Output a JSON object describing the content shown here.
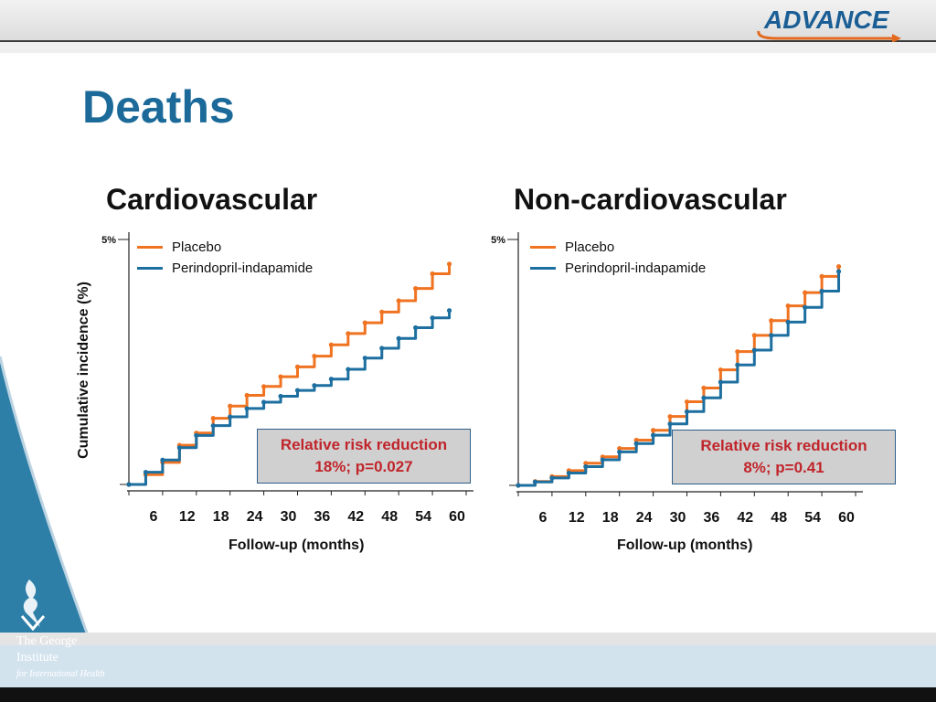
{
  "header": {
    "logo_text": "ADVANCE"
  },
  "page": {
    "title": "Deaths"
  },
  "footer": {
    "institute_line1": "The George",
    "institute_line2": "Institute",
    "institute_line3": "for International Health"
  },
  "colors": {
    "placebo": "#f07321",
    "active": "#1d6fa0",
    "title": "#1c6a99",
    "rrr_text": "#c0252b",
    "sidebar": "#2e7fa8"
  },
  "chart_data": [
    {
      "type": "line",
      "title": "Cardiovascular",
      "xlabel": "Follow-up (months)",
      "ylabel": "Cumulative incidence (%)",
      "x_ticks": [
        6,
        12,
        18,
        24,
        30,
        36,
        42,
        48,
        54,
        60
      ],
      "x_tick_labels": [
        "6",
        "12",
        "18",
        "24",
        "30",
        "36",
        "42",
        "48",
        "54",
        "60"
      ],
      "xlim": [
        0,
        60
      ],
      "ylim": [
        0,
        5
      ],
      "y_tick_labels": [
        "5%"
      ],
      "legend": [
        "Placebo",
        "Perindopril-indapamide"
      ],
      "annotation": {
        "line1": "Relative risk reduction",
        "line2": "18%;  p=0.027"
      },
      "series": [
        {
          "name": "Placebo",
          "x": [
            0,
            3,
            6,
            9,
            12,
            15,
            18,
            21,
            24,
            27,
            30,
            33,
            36,
            39,
            42,
            45,
            48,
            51,
            54,
            57
          ],
          "y": [
            0,
            0.2,
            0.45,
            0.8,
            1.05,
            1.35,
            1.6,
            1.82,
            2.0,
            2.2,
            2.4,
            2.62,
            2.85,
            3.08,
            3.3,
            3.52,
            3.75,
            4.0,
            4.3,
            4.5
          ]
        },
        {
          "name": "Perindopril-indapamide",
          "x": [
            0,
            3,
            6,
            9,
            12,
            15,
            18,
            21,
            24,
            27,
            30,
            33,
            36,
            39,
            42,
            45,
            48,
            51,
            54,
            57
          ],
          "y": [
            0,
            0.25,
            0.5,
            0.75,
            1.0,
            1.2,
            1.38,
            1.55,
            1.68,
            1.8,
            1.92,
            2.02,
            2.15,
            2.35,
            2.58,
            2.78,
            2.98,
            3.2,
            3.4,
            3.55
          ]
        }
      ]
    },
    {
      "type": "line",
      "title": "Non-cardiovascular",
      "xlabel": "Follow-up (months)",
      "ylabel": "",
      "x_ticks": [
        6,
        12,
        18,
        24,
        30,
        36,
        42,
        48,
        54,
        60
      ],
      "x_tick_labels": [
        "6",
        "12",
        "18",
        "24",
        "30",
        "36",
        "42",
        "48",
        "54",
        "60"
      ],
      "xlim": [
        0,
        60
      ],
      "ylim": [
        0,
        5
      ],
      "y_tick_labels": [
        "5%"
      ],
      "legend": [
        "Placebo",
        "Perindopril-indapamide"
      ],
      "annotation": {
        "line1": "Relative risk reduction",
        "line2": "8%; p=0.41"
      },
      "series": [
        {
          "name": "Placebo",
          "x": [
            0,
            3,
            6,
            9,
            12,
            15,
            18,
            21,
            24,
            27,
            30,
            33,
            36,
            39,
            42,
            45,
            48,
            51,
            54,
            57
          ],
          "y": [
            0,
            0.08,
            0.18,
            0.3,
            0.45,
            0.58,
            0.75,
            0.92,
            1.12,
            1.4,
            1.7,
            1.98,
            2.35,
            2.72,
            3.05,
            3.35,
            3.65,
            3.92,
            4.25,
            4.45
          ]
        },
        {
          "name": "Perindopril-indapamide",
          "x": [
            0,
            3,
            6,
            9,
            12,
            15,
            18,
            21,
            24,
            27,
            30,
            33,
            36,
            39,
            42,
            45,
            48,
            51,
            54,
            57
          ],
          "y": [
            0,
            0.07,
            0.15,
            0.25,
            0.38,
            0.52,
            0.68,
            0.85,
            1.02,
            1.25,
            1.5,
            1.78,
            2.1,
            2.45,
            2.75,
            3.05,
            3.32,
            3.62,
            3.95,
            4.35
          ]
        }
      ]
    }
  ]
}
